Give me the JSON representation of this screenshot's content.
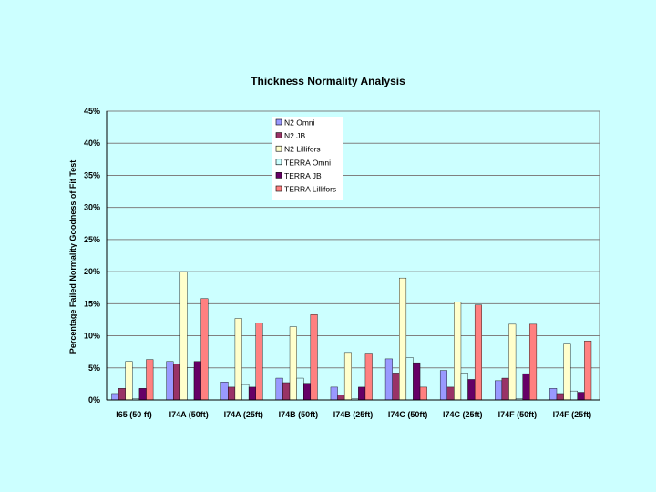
{
  "chart_data": {
    "type": "bar",
    "title": "Thickness Normality Analysis",
    "xlabel": "",
    "ylabel": "Percentage Failed Normality Goodness of Fit Test",
    "ylim": [
      0,
      45
    ],
    "y_ticks": [
      "0%",
      "5%",
      "10%",
      "15%",
      "20%",
      "25%",
      "30%",
      "35%",
      "40%",
      "45%"
    ],
    "grid": true,
    "legend_position": "top-center",
    "categories": [
      "I65 (50 ft)",
      "I74A (50ft)",
      "I74A (25ft)",
      "I74B (50ft)",
      "I74B (25ft)",
      "I74C (50ft)",
      "I74C (25ft)",
      "I74F (50ft)",
      "I74F (25ft)"
    ],
    "series": [
      {
        "name": "N2 Omni",
        "color": "#9999ff",
        "values": [
          1.0,
          6.0,
          2.8,
          3.4,
          2.0,
          6.4,
          4.6,
          3.0,
          1.8
        ]
      },
      {
        "name": "N2 JB",
        "color": "#993366",
        "values": [
          1.8,
          5.6,
          2.0,
          2.7,
          0.8,
          4.2,
          2.0,
          3.4,
          1.0
        ]
      },
      {
        "name": "N2 Lillifors",
        "color": "#ffffcc",
        "values": [
          6.0,
          20.0,
          12.7,
          11.4,
          7.4,
          19.0,
          15.3,
          11.8,
          8.7
        ]
      },
      {
        "name": "TERRA Omni",
        "color": "#ccffff",
        "values": [
          0.2,
          5.0,
          2.4,
          3.4,
          0.2,
          6.6,
          4.2,
          0.2,
          1.4
        ]
      },
      {
        "name": "TERRA JB",
        "color": "#660066",
        "values": [
          1.8,
          6.0,
          2.0,
          2.6,
          2.0,
          5.8,
          3.2,
          4.1,
          1.2
        ]
      },
      {
        "name": "TERRA Lillifors",
        "color": "#ff8080",
        "values": [
          6.3,
          15.8,
          12.0,
          13.3,
          7.3,
          2.0,
          14.8,
          11.8,
          9.2
        ]
      }
    ]
  }
}
